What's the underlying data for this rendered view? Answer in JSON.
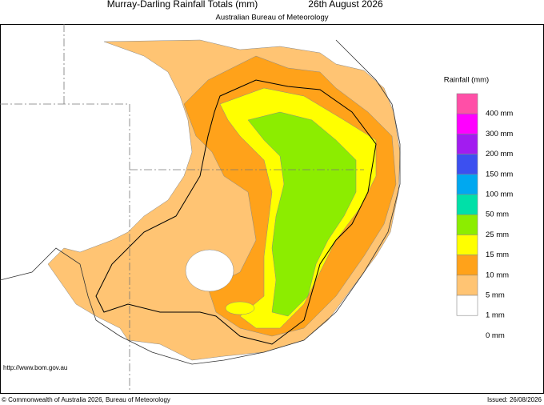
{
  "header": {
    "title": "Murray-Darling Rainfall Totals (mm)",
    "date": "26th August 2026",
    "subtitle": "Australian Bureau of Meteorology"
  },
  "legend": {
    "title": "Rainfall (mm)",
    "colors": [
      "#ff4fa7",
      "#ff00ff",
      "#a21cf0",
      "#3c50f0",
      "#00a8f0",
      "#00e0a8",
      "#8ced00",
      "#ffff00",
      "#ffa21a",
      "#ffc473",
      "#ffffff"
    ],
    "labels": [
      "400 mm",
      "300 mm",
      "200 mm",
      "150 mm",
      "100 mm",
      "50 mm",
      "25 mm",
      "15 mm",
      "10 mm",
      "5 mm",
      "1 mm",
      "0 mm"
    ]
  },
  "footer": {
    "url": "http://www.bom.gov.au",
    "copyright": "© Commonwealth of Australia 2026, Bureau of Meteorology",
    "issued": "Issued: 26/08/2026"
  }
}
